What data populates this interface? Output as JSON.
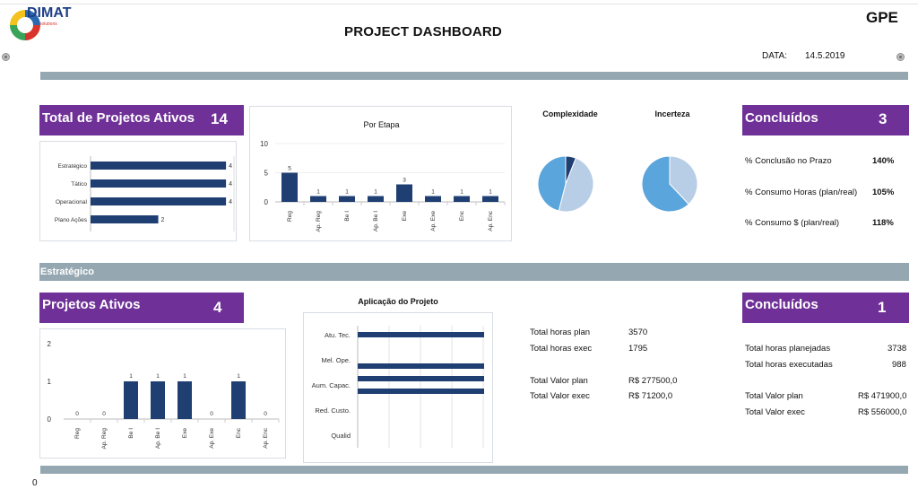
{
  "header": {
    "logo_text": "DIMAT",
    "logo_sub": "solutions",
    "title": "PROJECT DASHBOARD",
    "org": "GPE",
    "date_label": "DATA:",
    "date_value": "14.5.2019"
  },
  "overview": {
    "total_ativos_label": "Total de Projetos Ativos",
    "total_ativos_value": "14",
    "concluidos_label": "Concluídos",
    "concluidos_value": "3",
    "complexidade_title": "Complexidade",
    "incerteza_title": "Incerteza",
    "kpis": [
      {
        "label": "% Conclusão no Prazo",
        "value": "140%"
      },
      {
        "label": "% Consumo Horas (plan/real)",
        "value": "105%"
      },
      {
        "label": "% Consumo $ (plan/real)",
        "value": "118%"
      }
    ]
  },
  "section": {
    "label": "Estratégico"
  },
  "estrategico": {
    "ativos_label": "Projetos Ativos",
    "ativos_value": "4",
    "concluidos_label": "Concluídos",
    "concluidos_value": "1",
    "aplicacao_title": "Aplicação do Projeto",
    "totals_left": [
      {
        "label": "Total horas plan",
        "value": "3570"
      },
      {
        "label": "Total horas exec",
        "value": "1795"
      },
      {
        "label": "Total Valor plan",
        "value": "R$ 277500,0"
      },
      {
        "label": "Total Valor exec",
        "value": "R$ 71200,0"
      }
    ],
    "totals_right": [
      {
        "label": "Total horas planejadas",
        "value": "3738"
      },
      {
        "label": "Total horas executadas",
        "value": "988"
      },
      {
        "label": "Total Valor plan",
        "value": "R$ 471900,0"
      },
      {
        "label": "Total Valor exec",
        "value": "R$ 556000,0"
      }
    ]
  },
  "footer": {
    "zero": "0"
  },
  "colors": {
    "purple": "#6f3198",
    "navy": "#1f3f73",
    "slate": "#95a8b1",
    "blue": "#5aa5db",
    "light_blue": "#b8cde6"
  },
  "chart_data": [
    {
      "type": "bar",
      "orientation": "horizontal",
      "categories": [
        "Estratégico",
        "Tático",
        "Operacional",
        "Plano Ações"
      ],
      "values": [
        4,
        4,
        4,
        2
      ],
      "xlim": [
        0,
        4.5
      ]
    },
    {
      "type": "bar",
      "title": "Por Etapa",
      "categories": [
        "Reg",
        "Ap. Reg",
        "Be I",
        "Ap. Be I",
        "Exe",
        "Ap. Exe",
        "Enc",
        "Ap. Enc"
      ],
      "values": [
        5,
        1,
        1,
        1,
        3,
        1,
        1,
        1
      ],
      "yticks": [
        0,
        5,
        10
      ],
      "ylim": [
        0,
        10
      ]
    },
    {
      "type": "pie",
      "title": "Complexidade",
      "values": [
        0.06,
        0.48,
        0.46
      ],
      "colors": [
        "#1f3f73",
        "#b8cde6",
        "#5aa5db"
      ]
    },
    {
      "type": "pie",
      "title": "Incerteza",
      "values": [
        0.38,
        0.62
      ],
      "colors": [
        "#b8cde6",
        "#5aa5db"
      ]
    },
    {
      "type": "bar",
      "categories": [
        "Reg",
        "Ap. Reg",
        "Be I",
        "Ap. Be I",
        "Exe",
        "Ap. Exe",
        "Enc",
        "Ap. Enc"
      ],
      "values": [
        0,
        0,
        1,
        1,
        1,
        0,
        1,
        0
      ],
      "yticks": [
        0,
        1,
        2
      ],
      "ylim": [
        0,
        2
      ]
    },
    {
      "type": "bar",
      "orientation": "horizontal",
      "title": "Aplicação do Projeto",
      "categories": [
        "Atu. Tec.",
        "Mel. Ope.",
        "Aum. Capac.",
        "Red. Custo.",
        "Qualid"
      ],
      "values": [
        1,
        0,
        3,
        0,
        0
      ]
    }
  ]
}
